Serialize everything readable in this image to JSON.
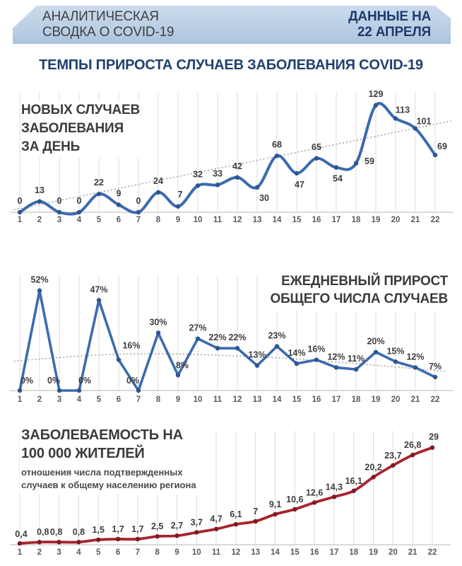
{
  "header": {
    "title_line1": "АНАЛИТИЧЕСКАЯ",
    "title_line2": "СВОДКА О COVID-19",
    "date_line1": "ДАННЫЕ НА",
    "date_line2": "22 АПРЕЛЯ"
  },
  "main_title": "ТЕМПЫ ПРИРОСТА СЛУЧАЕВ ЗАБОЛЕВАНИЯ COVID-19",
  "colors": {
    "grid": "#dcdcdc",
    "axis": "#c4c4c4",
    "trend": "#9b9b9b",
    "accent_blue": "#3c6ab0",
    "accent_red": "#a6242e",
    "navy": "#1e3a6e"
  },
  "chart_data": [
    {
      "type": "line",
      "name": "new-cases-per-day",
      "title_lines": [
        "НОВЫХ СЛУЧАЕВ",
        "ЗАБОЛЕВАНИЯ",
        "ЗА ДЕНЬ"
      ],
      "categories": [
        "1",
        "2",
        "3",
        "4",
        "5",
        "6",
        "7",
        "8",
        "9",
        "10",
        "11",
        "12",
        "13",
        "14",
        "15",
        "16",
        "17",
        "18",
        "19",
        "20",
        "21",
        "22"
      ],
      "values": [
        0,
        13,
        0,
        0,
        22,
        9,
        0,
        24,
        7,
        32,
        33,
        42,
        30,
        68,
        47,
        65,
        54,
        59,
        129,
        113,
        101,
        69
      ],
      "labels": [
        "0",
        "13",
        "0",
        "0",
        "22",
        "9",
        "0",
        "24",
        "7",
        "32",
        "33",
        "42",
        "30",
        "68",
        "47",
        "65",
        "54",
        "59",
        "129",
        "113",
        "101",
        "69"
      ],
      "line_color": "#3c6ab0",
      "marker_color": "#2d5591",
      "smooth": true,
      "grid": true,
      "legend": "none",
      "ylim": [
        0,
        145
      ],
      "trend": [
        [
          0.7,
          3
        ],
        [
          22.8,
          110
        ]
      ],
      "label_default_offset": [
        0,
        -12
      ],
      "label_offsets": {
        "8": [
          3,
          -13
        ],
        "12": [
          10,
          19
        ],
        "14": [
          4,
          20
        ],
        "16": [
          2,
          20
        ],
        "17": [
          19,
          1
        ],
        "19": [
          10,
          -8
        ],
        "20": [
          12,
          -6
        ],
        "21": [
          10,
          -8
        ]
      }
    },
    {
      "type": "line",
      "name": "daily-growth-rate",
      "title_lines": [
        "ЕЖЕДНЕВНЫЙ ПРИРОСТ",
        "ОБЩЕГО ЧИСЛА СЛУЧАЕВ"
      ],
      "categories": [
        "1",
        "2",
        "3",
        "4",
        "5",
        "6",
        "7",
        "8",
        "9",
        "10",
        "11",
        "12",
        "13",
        "14",
        "15",
        "16",
        "17",
        "18",
        "19",
        "20",
        "21",
        "22"
      ],
      "values": [
        0,
        52,
        0,
        0,
        47,
        16,
        0,
        30,
        8,
        27,
        22,
        22,
        13,
        23,
        14,
        16,
        12,
        11,
        20,
        15,
        12,
        7
      ],
      "labels": [
        "0%",
        "52%",
        "0%",
        "0%",
        "47%",
        "16%",
        "0%",
        "30%",
        "8%",
        "27%",
        "22%",
        "22%",
        "13%",
        "23%",
        "14%",
        "16%",
        "12%",
        "11%",
        "20%",
        "15%",
        "12%",
        "7%"
      ],
      "line_color": "#3c6ab0",
      "marker_color": "#2d5591",
      "smooth": false,
      "grid": true,
      "legend": "none",
      "ylim": [
        0,
        60
      ],
      "trend": [
        [
          0.7,
          15.3
        ],
        [
          5,
          18.5
        ],
        [
          9,
          19
        ],
        [
          14,
          17
        ],
        [
          18,
          14
        ],
        [
          22.5,
          10
        ]
      ],
      "label_default_offset": [
        0,
        -11
      ],
      "label_offsets": {
        "0": [
          10,
          -10
        ],
        "2": [
          -8,
          -10
        ],
        "3": [
          8,
          -10
        ],
        "5": [
          18,
          -16
        ],
        "6": [
          -8,
          -10
        ],
        "8": [
          6,
          -10
        ]
      }
    },
    {
      "type": "line",
      "name": "incidence-per-100k",
      "title_lines": [
        "ЗАБОЛЕВАЕМОСТЬ НА",
        "100 000 ЖИТЕЛЕЙ"
      ],
      "subtitle_lines": [
        "отношения числа подтвержденных",
        "случаев к общему населению региона"
      ],
      "categories": [
        "1",
        "2",
        "3",
        "4",
        "5",
        "6",
        "7",
        "8",
        "9",
        "10",
        "11",
        "12",
        "13",
        "14",
        "15",
        "16",
        "17",
        "18",
        "19",
        "20",
        "21",
        "22"
      ],
      "values": [
        0.4,
        0.8,
        0.8,
        0.8,
        1.5,
        1.7,
        1.7,
        2.5,
        2.7,
        3.7,
        4.7,
        6.1,
        7,
        9.1,
        10.6,
        12.6,
        14.3,
        16.1,
        20.2,
        23.7,
        26.8,
        29
      ],
      "labels": [
        "0,4",
        "0,8",
        "0,8",
        "0,8",
        "1,5",
        "1,7",
        "1,7",
        "2,5",
        "2,7",
        "3,7",
        "4,7",
        "6,1",
        "7",
        "9,1",
        "10,6",
        "12,6",
        "14,3",
        "16,1",
        "20,2",
        "23,7",
        "26,8",
        "29"
      ],
      "line_color": "#a6242e",
      "marker_color": "#7e1a22",
      "smooth": true,
      "grid": true,
      "legend": "none",
      "ylim": [
        0,
        34
      ],
      "trend": null,
      "label_default_offset": [
        0,
        -10
      ],
      "label_offsets": {
        "0": [
          2,
          -9
        ],
        "1": [
          5,
          -10
        ],
        "2": [
          -4,
          -10
        ],
        "21": [
          2,
          -11
        ]
      }
    }
  ]
}
